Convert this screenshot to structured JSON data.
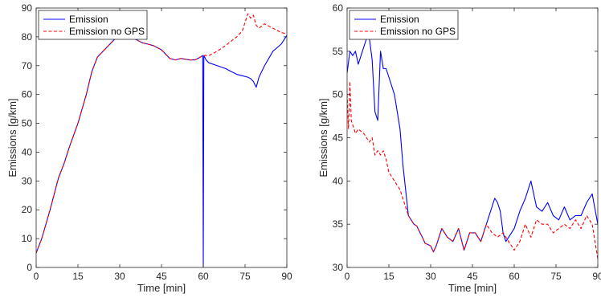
{
  "chart_data": [
    {
      "type": "line",
      "xlabel": "Time [min]",
      "ylabel": "Emissions [g/km]",
      "xlim": [
        0,
        90
      ],
      "ylim": [
        0,
        90
      ],
      "xticks": [
        0,
        15,
        30,
        45,
        60,
        75,
        90
      ],
      "yticks": [
        0,
        10,
        20,
        30,
        40,
        50,
        60,
        70,
        80,
        90
      ],
      "grid": false,
      "legend_position": "top-left",
      "series": [
        {
          "name": "Emission",
          "color": "#0000ff",
          "style": "solid",
          "x": [
            0,
            2,
            5,
            8,
            10,
            12,
            15,
            18,
            20,
            22,
            25,
            28,
            30,
            32,
            35,
            38,
            40,
            42,
            45,
            48,
            50,
            52,
            55,
            57,
            59,
            59.8,
            60,
            60.2,
            60.5,
            61,
            62,
            65,
            68,
            70,
            72,
            74,
            76,
            77,
            78,
            79,
            80,
            82,
            85,
            88,
            90
          ],
          "y": [
            5,
            10,
            20,
            31,
            36,
            42,
            50,
            60,
            68,
            73,
            76,
            79,
            80.5,
            80.5,
            79.5,
            78,
            77.5,
            77,
            75.5,
            72.5,
            72,
            72.5,
            72,
            72,
            73,
            73.5,
            0,
            73.5,
            73,
            72,
            71,
            70,
            69,
            68,
            67,
            66.5,
            66,
            65.5,
            64.5,
            62.5,
            66,
            70,
            75,
            77.5,
            80.5
          ]
        },
        {
          "name": "Emission no GPS",
          "color": "#ff0000",
          "style": "dashed",
          "x": [
            0,
            2,
            5,
            8,
            10,
            12,
            15,
            18,
            20,
            22,
            25,
            28,
            30,
            32,
            35,
            38,
            40,
            42,
            45,
            48,
            50,
            52,
            55,
            57,
            59,
            60,
            62,
            65,
            68,
            70,
            72,
            74,
            75,
            76,
            77,
            78,
            79,
            80,
            82,
            85,
            88,
            90
          ],
          "y": [
            5,
            10,
            20,
            31,
            36,
            42,
            50,
            60,
            68,
            73,
            76,
            79,
            80.5,
            80.5,
            79.5,
            78,
            77.5,
            77,
            75.5,
            72.5,
            72,
            72.5,
            72,
            72,
            73,
            73.5,
            73.5,
            75,
            77,
            78.5,
            80,
            82,
            85,
            88,
            86.5,
            87.5,
            84,
            83,
            84.5,
            83,
            81.5,
            81
          ]
        }
      ]
    },
    {
      "type": "line",
      "xlabel": "Time [min]",
      "ylabel": "Emissions [g/km]",
      "xlim": [
        0,
        90
      ],
      "ylim": [
        30,
        60
      ],
      "xticks": [
        0,
        15,
        30,
        45,
        60,
        75,
        90
      ],
      "yticks": [
        30,
        35,
        40,
        45,
        50,
        55,
        60
      ],
      "grid": false,
      "legend_position": "top-left",
      "series": [
        {
          "name": "Emission",
          "color": "#0000ff",
          "style": "solid",
          "x": [
            0,
            1,
            2,
            3,
            4,
            5,
            6,
            7,
            8,
            9,
            10,
            11,
            12,
            13,
            14,
            15,
            17,
            19,
            20,
            22,
            24,
            25,
            27,
            28,
            30,
            31,
            32,
            34,
            36,
            38,
            40,
            42,
            44,
            46,
            48,
            50,
            51,
            52,
            53,
            54,
            55,
            56,
            57,
            58,
            60,
            62,
            64,
            66,
            68,
            70,
            72,
            74,
            76,
            78,
            80,
            82,
            84,
            86,
            88,
            90
          ],
          "y": [
            52.5,
            55,
            54.5,
            55,
            53.5,
            54.5,
            55.5,
            56.5,
            56.5,
            54,
            48,
            47,
            55,
            53,
            53,
            52,
            50,
            46,
            42,
            36,
            35,
            34.8,
            33.5,
            32.8,
            32.5,
            31.8,
            32.5,
            34.5,
            33.5,
            33,
            34.5,
            32,
            34,
            34,
            33,
            35,
            36,
            37,
            38,
            37.5,
            36.5,
            34,
            33,
            33.5,
            34.5,
            36.5,
            38,
            40,
            37,
            36.5,
            37.5,
            36,
            35.5,
            37,
            35.5,
            36,
            36,
            37.5,
            38.5,
            35
          ]
        },
        {
          "name": "Emission no GPS",
          "color": "#ff0000",
          "style": "dashed",
          "x": [
            0,
            0.5,
            1,
            1.5,
            2,
            3,
            4,
            6,
            8,
            9,
            10,
            11,
            12,
            13,
            14,
            15,
            17,
            19,
            20,
            22,
            24,
            25,
            27,
            28,
            30,
            31,
            32,
            34,
            36,
            38,
            40,
            42,
            44,
            46,
            48,
            50,
            52,
            54,
            56,
            58,
            60,
            62,
            64,
            66,
            68,
            70,
            72,
            74,
            76,
            78,
            80,
            82,
            84,
            86,
            88,
            90
          ],
          "y": [
            50,
            46,
            51.5,
            47,
            46.5,
            45.5,
            46,
            45.5,
            44.5,
            45,
            43,
            43.5,
            43,
            43.5,
            42.5,
            41,
            40,
            39,
            38,
            36,
            35,
            34.8,
            33.5,
            32.8,
            32.5,
            31.8,
            32.5,
            34.5,
            33.5,
            33,
            34.5,
            32,
            34,
            34,
            33,
            35,
            34,
            33.5,
            34,
            33,
            32,
            33,
            35,
            33.5,
            35.5,
            35,
            35,
            34,
            34.5,
            35,
            34.5,
            35.5,
            34.5,
            36,
            35,
            31
          ]
        }
      ]
    }
  ]
}
